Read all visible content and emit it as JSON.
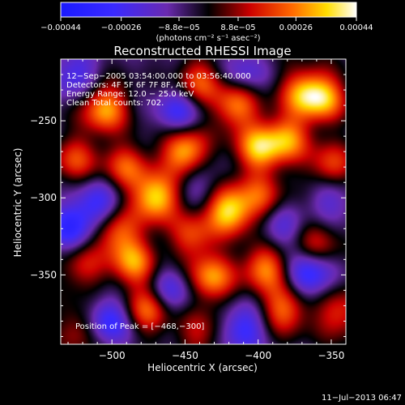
{
  "chart_data": {
    "type": "heatmap",
    "title": "Reconstructed RHESSI Image",
    "xlabel": "Heliocentric X (arcsec)",
    "ylabel": "Heliocentric Y (arcsec)",
    "xlim": [
      -535,
      -340
    ],
    "ylim": [
      -395,
      -210
    ],
    "x_ticks": [
      -500,
      -450,
      -400,
      -350
    ],
    "x_tick_labels": [
      "−500",
      "−450",
      "−400",
      "−350"
    ],
    "y_ticks": [
      -250,
      -300,
      -350
    ],
    "y_tick_labels": [
      "−250",
      "−300",
      "−350"
    ],
    "colorbar": {
      "range": [
        -0.00044,
        0.00044
      ],
      "ticks": [
        -0.00044,
        -0.00026,
        -8.8e-05,
        8.8e-05,
        0.00026,
        0.00044
      ],
      "tick_labels": [
        "−0.00044",
        "−0.00026",
        "−8.8e−05",
        "8.8e−05",
        "0.00026",
        "0.00044"
      ],
      "unit_label": "(photons cm⁻² s⁻¹ asec⁻²)"
    },
    "annotations": [
      "12−Sep−2005 03:54:00.000 to 03:56:40.000",
      "Detectors: 4F 5F 6F 7F 8F, Att 0",
      "Energy Range: 12.0 − 25.0 keV",
      "Clean    Total counts: 702.",
      "Position of Peak = [−468,−300]"
    ],
    "peak": [
      -468,
      -300
    ],
    "blobs": [
      {
        "x": -470,
        "y": -300,
        "v": 1.0
      },
      {
        "x": -420,
        "y": -308,
        "v": 1.0
      },
      {
        "x": -450,
        "y": -270,
        "v": 0.95
      },
      {
        "x": -400,
        "y": -268,
        "v": 0.85
      },
      {
        "x": -505,
        "y": -242,
        "v": 0.85
      },
      {
        "x": -490,
        "y": -280,
        "v": 0.6
      },
      {
        "x": -415,
        "y": -240,
        "v": 0.75
      },
      {
        "x": -380,
        "y": -262,
        "v": 0.75
      },
      {
        "x": -370,
        "y": -232,
        "v": 0.7
      },
      {
        "x": -355,
        "y": -235,
        "v": 0.8
      },
      {
        "x": -432,
        "y": -352,
        "v": 0.8
      },
      {
        "x": -395,
        "y": -345,
        "v": 0.75
      },
      {
        "x": -485,
        "y": -342,
        "v": 0.75
      },
      {
        "x": -497,
        "y": -322,
        "v": 0.65
      },
      {
        "x": -475,
        "y": -372,
        "v": 0.7
      },
      {
        "x": -382,
        "y": -372,
        "v": 0.7
      },
      {
        "x": -525,
        "y": -275,
        "v": 0.55
      },
      {
        "x": -440,
        "y": -225,
        "v": 0.6
      },
      {
        "x": -350,
        "y": -280,
        "v": 0.6
      },
      {
        "x": -360,
        "y": -330,
        "v": 0.45
      },
      {
        "x": -520,
        "y": -345,
        "v": 0.45
      },
      {
        "x": -520,
        "y": -385,
        "v": 0.45
      },
      {
        "x": -440,
        "y": -388,
        "v": 0.4
      },
      {
        "x": -398,
        "y": -300,
        "v": 0.55
      },
      {
        "x": -345,
        "y": -375,
        "v": 0.55
      },
      {
        "x": -445,
        "y": -325,
        "v": 0.55
      },
      {
        "x": -530,
        "y": -320,
        "v": -0.6
      },
      {
        "x": -510,
        "y": -305,
        "v": -0.6
      },
      {
        "x": -503,
        "y": -380,
        "v": -0.7
      },
      {
        "x": -455,
        "y": -245,
        "v": -0.55
      },
      {
        "x": -410,
        "y": -385,
        "v": -0.6
      },
      {
        "x": -365,
        "y": -350,
        "v": -0.7
      },
      {
        "x": -350,
        "y": -300,
        "v": -0.4
      },
      {
        "x": -410,
        "y": -220,
        "v": -0.4
      },
      {
        "x": -525,
        "y": -220,
        "v": -0.5
      },
      {
        "x": -460,
        "y": -360,
        "v": -0.5
      },
      {
        "x": -440,
        "y": -290,
        "v": -0.3
      },
      {
        "x": -385,
        "y": -320,
        "v": -0.4
      }
    ]
  },
  "footer": {
    "timestamp": "11−Jul−2013 06:47"
  }
}
